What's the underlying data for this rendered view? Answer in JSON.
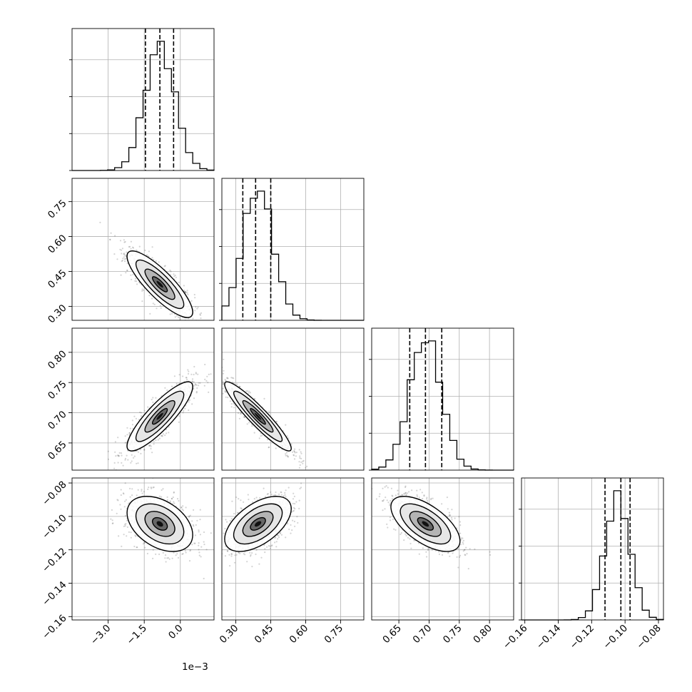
{
  "chart_data": {
    "type": "corner",
    "parameters": [
      {
        "range": [
          -0.0045,
          0.0014
        ],
        "ticks": [
          -0.003,
          -0.0015,
          0.0
        ],
        "tick_labels": [
          "−3.0",
          "−1.5",
          "0.0"
        ],
        "offset_text": "1e−3",
        "mean": -0.00085,
        "sd": 0.00062,
        "quantiles": [
          -0.00145,
          -0.00085,
          -0.00028
        ]
      },
      {
        "range": [
          0.24,
          0.85
        ],
        "ticks": [
          0.3,
          0.45,
          0.6,
          0.75
        ],
        "tick_labels": [
          "0.30",
          "0.45",
          "0.60",
          "0.75"
        ],
        "offset_text": "",
        "mean": 0.395,
        "sd": 0.065,
        "quantiles": [
          0.33,
          0.385,
          0.45
        ]
      },
      {
        "range": [
          0.605,
          0.84
        ],
        "ticks": [
          0.65,
          0.7,
          0.75,
          0.8
        ],
        "tick_labels": [
          "0.65",
          "0.70",
          "0.75",
          "0.80"
        ],
        "offset_text": "",
        "mean": 0.694,
        "sd": 0.026,
        "quantiles": [
          0.668,
          0.694,
          0.721
        ]
      },
      {
        "range": [
          -0.162,
          -0.077
        ],
        "ticks": [
          -0.16,
          -0.14,
          -0.12,
          -0.1,
          -0.08
        ],
        "tick_labels": [
          "−0.16",
          "−0.14",
          "−0.12",
          "−0.10",
          "−0.08"
        ],
        "offset_text": "",
        "mean": -0.1045,
        "sd": 0.0075,
        "quantiles": [
          -0.112,
          -0.1025,
          -0.097
        ]
      }
    ],
    "hist_yticks_label_free": true,
    "pair_correlations": [
      {
        "i": 1,
        "j": 0,
        "rho": -0.84
      },
      {
        "i": 2,
        "j": 0,
        "rho": 0.86
      },
      {
        "i": 2,
        "j": 1,
        "rho": -0.93
      },
      {
        "i": 3,
        "j": 0,
        "rho": -0.4
      },
      {
        "i": 3,
        "j": 1,
        "rho": 0.55
      },
      {
        "i": 3,
        "j": 2,
        "rho": -0.62
      }
    ],
    "grid": true,
    "colors": {
      "points": "#3a3a3a",
      "contour": "#000000",
      "density_dark": "#000000",
      "density_light": "#ffffff"
    }
  }
}
